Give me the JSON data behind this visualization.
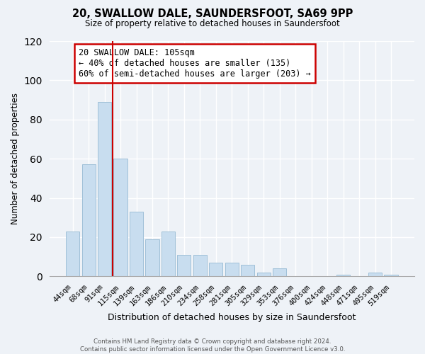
{
  "title": "20, SWALLOW DALE, SAUNDERSFOOT, SA69 9PP",
  "subtitle": "Size of property relative to detached houses in Saundersfoot",
  "xlabel": "Distribution of detached houses by size in Saundersfoot",
  "ylabel": "Number of detached properties",
  "bar_color": "#c8ddef",
  "bar_edge_color": "#a0c0d8",
  "categories": [
    "44sqm",
    "68sqm",
    "91sqm",
    "115sqm",
    "139sqm",
    "163sqm",
    "186sqm",
    "210sqm",
    "234sqm",
    "258sqm",
    "281sqm",
    "305sqm",
    "329sqm",
    "353sqm",
    "376sqm",
    "400sqm",
    "424sqm",
    "448sqm",
    "471sqm",
    "495sqm",
    "519sqm"
  ],
  "values": [
    23,
    57,
    89,
    60,
    33,
    19,
    23,
    11,
    11,
    7,
    7,
    6,
    2,
    4,
    0,
    0,
    0,
    1,
    0,
    2,
    1
  ],
  "ylim": [
    0,
    120
  ],
  "yticks": [
    0,
    20,
    40,
    60,
    80,
    100,
    120
  ],
  "red_line_x": 2.5,
  "marker_color": "#cc0000",
  "annotation_title": "20 SWALLOW DALE: 105sqm",
  "annotation_line1": "← 40% of detached houses are smaller (135)",
  "annotation_line2": "60% of semi-detached houses are larger (203) →",
  "annotation_box_color": "#ffffff",
  "annotation_box_edge": "#cc0000",
  "footer1": "Contains HM Land Registry data © Crown copyright and database right 2024.",
  "footer2": "Contains public sector information licensed under the Open Government Licence v3.0.",
  "background_color": "#eef2f7",
  "grid_color": "#ffffff",
  "figsize": [
    6.0,
    5.0
  ],
  "dpi": 100
}
